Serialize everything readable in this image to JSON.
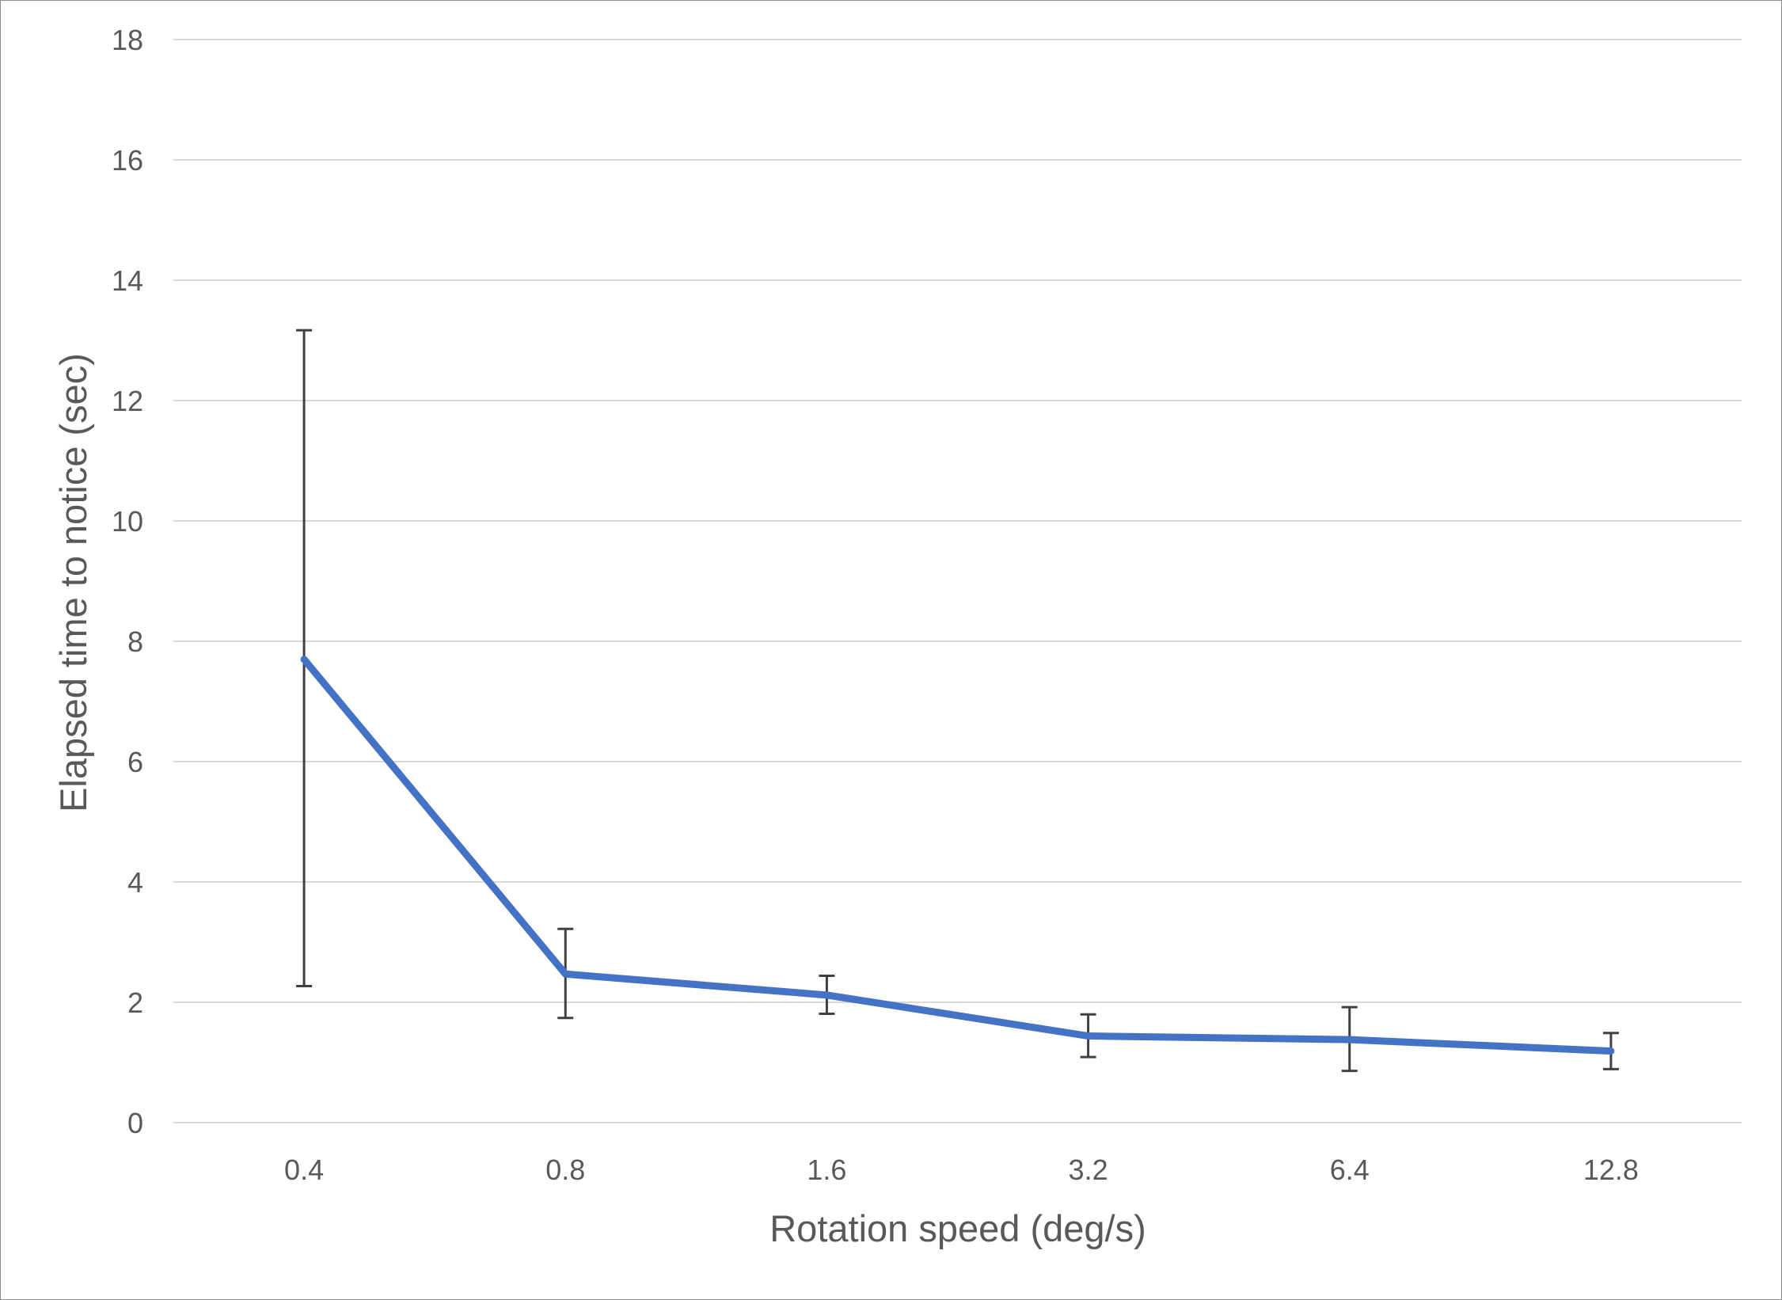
{
  "chart_data": {
    "type": "line",
    "title": "",
    "xlabel": "Rotation speed (deg/s)",
    "ylabel": "Elapsed time to notice (sec)",
    "categories": [
      "0.4",
      "0.8",
      "1.6",
      "3.2",
      "6.4",
      "12.8"
    ],
    "series": [
      {
        "values": [
          7.7,
          2.47,
          2.12,
          1.44,
          1.38,
          1.19
        ],
        "error_low": [
          2.27,
          1.74,
          1.81,
          1.09,
          0.86,
          0.89
        ],
        "error_high": [
          13.17,
          3.22,
          2.44,
          1.8,
          1.92,
          1.49
        ],
        "color": "#4472C4"
      }
    ],
    "ylim": [
      0,
      18
    ],
    "yticks": [
      0,
      2,
      4,
      6,
      8,
      10,
      12,
      14,
      16,
      18
    ],
    "ytick_labels": [
      "0",
      "2",
      "4",
      "6",
      "8",
      "10",
      "12",
      "14",
      "16",
      "18"
    ],
    "grid": true,
    "legend": "none",
    "colors": {
      "line": "#4472C4",
      "error_bar": "#404040",
      "grid": "#d9d9d9",
      "text": "#595959"
    }
  }
}
